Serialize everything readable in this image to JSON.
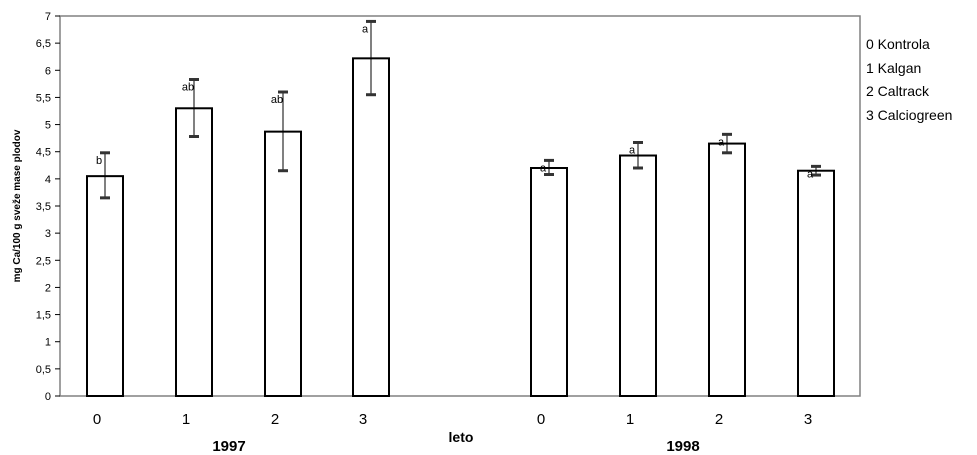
{
  "chart_data": {
    "type": "bar",
    "ylabel": "mg Ca/100 g sveže mase plodov",
    "xlabel": "leto",
    "ylim": [
      0,
      7
    ],
    "yticks": [
      "0",
      "0,5",
      "1",
      "1,5",
      "2",
      "2,5",
      "3",
      "3,5",
      "4",
      "4,5",
      "5",
      "5,5",
      "6",
      "6,5",
      "7"
    ],
    "grid": false,
    "groups": [
      {
        "name": "1997",
        "categories": [
          "0",
          "1",
          "2",
          "3"
        ],
        "values": [
          4.05,
          5.3,
          4.87,
          6.22
        ],
        "error_low": [
          3.65,
          4.78,
          4.15,
          5.55
        ],
        "error_high": [
          4.48,
          5.83,
          5.6,
          6.9
        ],
        "labels": [
          "b",
          "ab",
          "ab",
          "a"
        ]
      },
      {
        "name": "1998",
        "categories": [
          "0",
          "1",
          "2",
          "3"
        ],
        "values": [
          4.2,
          4.43,
          4.65,
          4.15
        ],
        "error_low": [
          4.08,
          4.2,
          4.48,
          4.07
        ],
        "error_high": [
          4.34,
          4.67,
          4.82,
          4.23
        ],
        "labels": [
          "a",
          "a",
          "a",
          "a"
        ]
      }
    ],
    "legend": {
      "position": "right",
      "entries": [
        "0  Kontrola",
        "1  Kalgan",
        "2  Caltrack",
        "3 Calciogreen"
      ]
    }
  }
}
